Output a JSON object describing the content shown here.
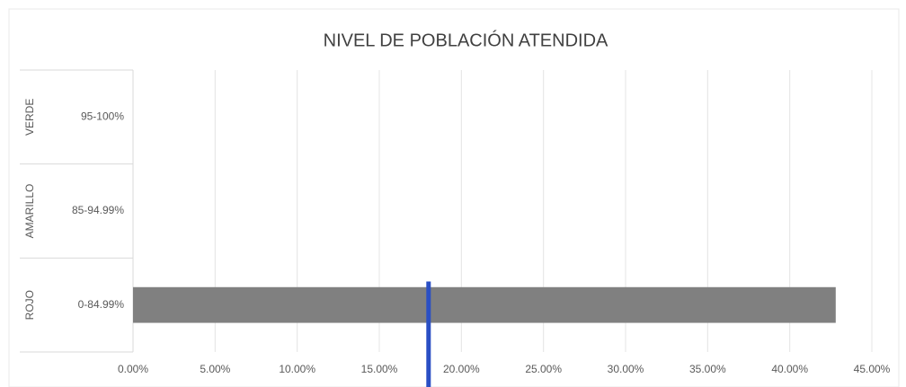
{
  "chart_data": {
    "type": "bar",
    "orientation": "horizontal",
    "title": "NIVEL DE POBLACIÓN ATENDIDA",
    "groups": [
      "VERDE",
      "AMARILLO",
      "ROJO"
    ],
    "categories": [
      "95-100%",
      "85-94.99%",
      "0-84.99%"
    ],
    "values": [
      null,
      null,
      42.8
    ],
    "color": "#808080",
    "xlim": [
      0,
      45
    ],
    "xticks": [
      {
        "value": 0,
        "label": "0.00%"
      },
      {
        "value": 5,
        "label": "5.00%"
      },
      {
        "value": 10,
        "label": "10.00%"
      },
      {
        "value": 15,
        "label": "15.00%"
      },
      {
        "value": 20,
        "label": "20.00%"
      },
      {
        "value": 25,
        "label": "25.00%"
      },
      {
        "value": 30,
        "label": "30.00%"
      },
      {
        "value": 35,
        "label": "35.00%"
      },
      {
        "value": 40,
        "label": "40.00%"
      },
      {
        "value": 45,
        "label": "45.00%"
      }
    ],
    "grid": true,
    "reference_line": {
      "value": 18,
      "color": "#2a4fc4"
    }
  }
}
